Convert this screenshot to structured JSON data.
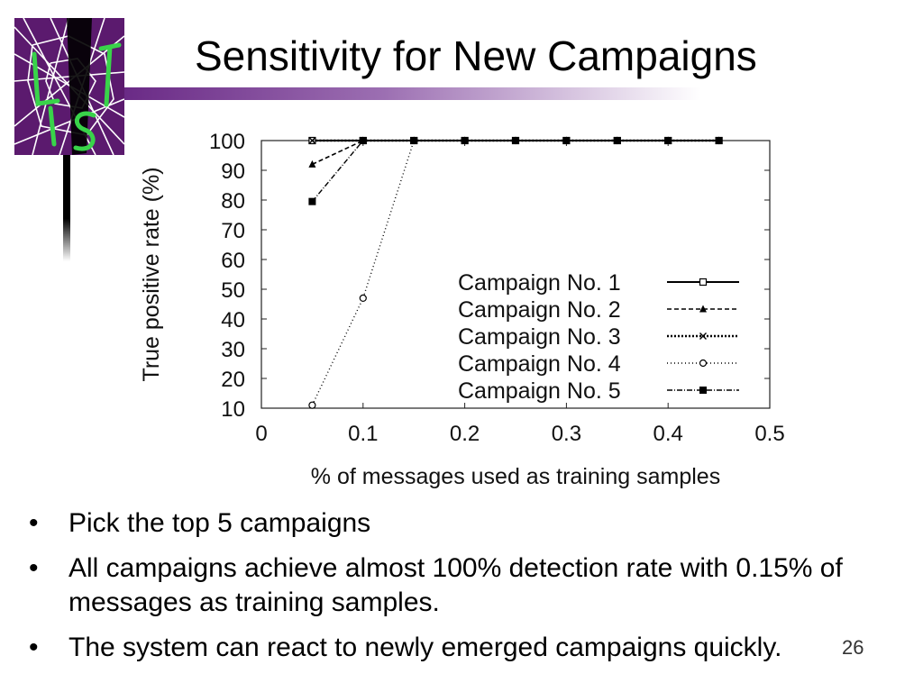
{
  "slide": {
    "title": "Sensitivity for New Campaigns",
    "bullets": [
      "Pick the top 5 campaigns",
      "All campaigns achieve almost 100% detection rate with 0.15% of messages as training samples.",
      "The system can react to newly emerged campaigns quickly."
    ],
    "bullet_glyph": "•",
    "page_number": "26",
    "logo": {
      "text": "LIST",
      "colors": {
        "background": "#5b1a6e",
        "lines": "#ffffff",
        "letters": "#39d34a"
      }
    },
    "accent_color": "#6a2a86"
  },
  "chart_data": {
    "type": "line",
    "title": "",
    "xlabel": "% of messages used as training samples",
    "ylabel": "True positive rate (%)",
    "xlim": [
      0,
      0.5
    ],
    "ylim": [
      10,
      100
    ],
    "xticks": [
      0,
      0.1,
      0.2,
      0.3,
      0.4,
      0.5
    ],
    "xtick_labels": [
      "0",
      "0.1",
      "0.2",
      "0.3",
      "0.4",
      "0.5"
    ],
    "yticks": [
      10,
      20,
      30,
      40,
      50,
      60,
      70,
      80,
      90,
      100
    ],
    "ytick_labels": [
      "10",
      "20",
      "30",
      "40",
      "50",
      "60",
      "70",
      "80",
      "90",
      "100"
    ],
    "grid": false,
    "legend_position": "bottom-right",
    "series": [
      {
        "name": "Campaign No. 1",
        "style": "solid",
        "marker": "square-open",
        "x": [
          0.05,
          0.1,
          0.15,
          0.2,
          0.25,
          0.3,
          0.35,
          0.4,
          0.45
        ],
        "y": [
          100,
          100,
          100,
          100,
          100,
          100,
          100,
          100,
          100
        ]
      },
      {
        "name": "Campaign No. 2",
        "style": "dashed",
        "marker": "triangle",
        "x": [
          0.05,
          0.1,
          0.15,
          0.2,
          0.25,
          0.3,
          0.35,
          0.4,
          0.45
        ],
        "y": [
          92,
          100,
          100,
          100,
          100,
          100,
          100,
          100,
          100
        ]
      },
      {
        "name": "Campaign No. 3",
        "style": "dotted",
        "marker": "x",
        "x": [
          0.05,
          0.1,
          0.15,
          0.2,
          0.25,
          0.3,
          0.35,
          0.4,
          0.45
        ],
        "y": [
          100,
          100,
          100,
          100,
          100,
          100,
          100,
          100,
          100
        ]
      },
      {
        "name": "Campaign No. 4",
        "style": "dashdot-fine",
        "marker": "circle-open",
        "x": [
          0.05,
          0.1,
          0.15,
          0.2,
          0.25,
          0.3,
          0.35,
          0.4,
          0.45
        ],
        "y": [
          11,
          47,
          100,
          100,
          100,
          100,
          100,
          100,
          100
        ]
      },
      {
        "name": "Campaign No. 5",
        "style": "dashdot",
        "marker": "square-filled",
        "x": [
          0.05,
          0.1,
          0.15,
          0.2,
          0.25,
          0.3,
          0.35,
          0.4,
          0.45
        ],
        "y": [
          79.5,
          100,
          100,
          100,
          100,
          100,
          100,
          100,
          100
        ]
      }
    ]
  }
}
